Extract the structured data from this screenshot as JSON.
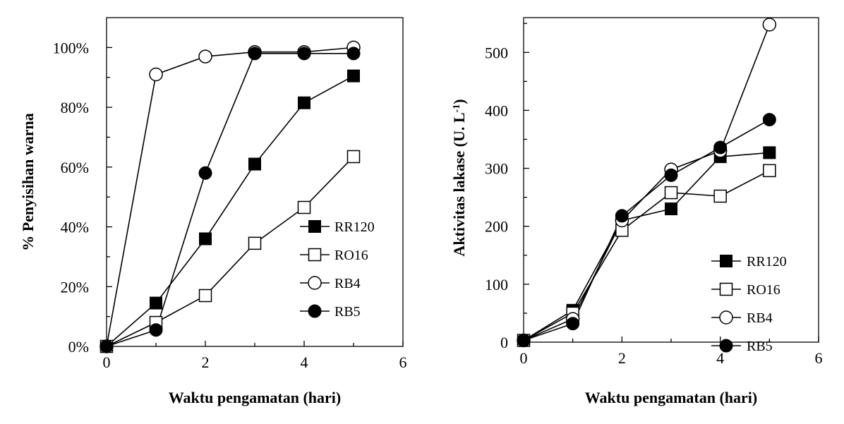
{
  "chart_data": [
    {
      "type": "line",
      "title": "",
      "xlabel": "Waktu pengamatan (hari)",
      "ylabel": "% Penyisihan warna",
      "xlim": [
        0,
        6
      ],
      "ylim": [
        0,
        1.1
      ],
      "xticks": [
        0,
        2,
        4,
        6
      ],
      "yticks": [
        0,
        0.2,
        0.4,
        0.6,
        0.8,
        1.0
      ],
      "ytick_labels": [
        "0%",
        "20%",
        "40%",
        "60%",
        "80%",
        "100%"
      ],
      "grid": false,
      "legend_position": "lower-right",
      "x": [
        0,
        1,
        2,
        3,
        4,
        5
      ],
      "series": [
        {
          "name": "RR120",
          "marker": "square-filled",
          "values": [
            0,
            0.145,
            0.36,
            0.61,
            0.815,
            0.905
          ]
        },
        {
          "name": "RO16",
          "marker": "square-open",
          "values": [
            0,
            0.08,
            0.17,
            0.345,
            0.465,
            0.635
          ]
        },
        {
          "name": "RB4",
          "marker": "circle-open",
          "values": [
            0,
            0.91,
            0.97,
            0.985,
            0.985,
            1.0
          ]
        },
        {
          "name": "RB5",
          "marker": "circle-filled",
          "values": [
            0,
            0.055,
            0.58,
            0.98,
            0.98,
            0.98
          ]
        }
      ]
    },
    {
      "type": "line",
      "title": "",
      "xlabel": "Waktu pengamatan (hari)",
      "ylabel": "Aktivitas lakase (U. L",
      "ylabel_superscript": "-1",
      "ylabel_suffix": ")",
      "xlim": [
        0,
        6
      ],
      "ylim": [
        0,
        560
      ],
      "xticks": [
        0,
        2,
        4,
        6
      ],
      "yticks": [
        0,
        100,
        200,
        300,
        400,
        500
      ],
      "ytick_labels": [
        "0",
        "100",
        "200",
        "300",
        "400",
        "500"
      ],
      "grid": false,
      "legend_position": "lower-right",
      "x": [
        0,
        1,
        2,
        3,
        4,
        5
      ],
      "series": [
        {
          "name": "RR120",
          "marker": "square-filled",
          "values": [
            3,
            55,
            210,
            230,
            320,
            327
          ]
        },
        {
          "name": "RO16",
          "marker": "square-open",
          "values": [
            3,
            50,
            193,
            258,
            252,
            296
          ]
        },
        {
          "name": "RB4",
          "marker": "circle-open",
          "values": [
            3,
            40,
            210,
            298,
            330,
            548
          ]
        },
        {
          "name": "RB5",
          "marker": "circle-filled",
          "values": [
            3,
            32,
            218,
            288,
            336,
            384
          ]
        }
      ]
    }
  ]
}
